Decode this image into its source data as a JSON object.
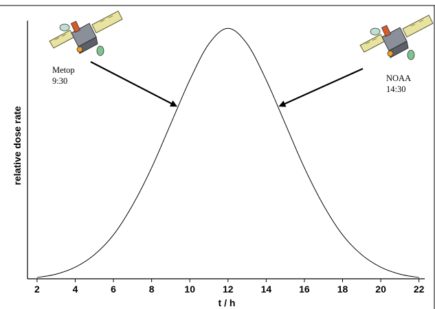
{
  "chart_data": {
    "type": "line",
    "title": "",
    "xlabel": "t / h",
    "ylabel": "relative dose rate",
    "xlim": [
      1.5,
      22.3
    ],
    "ylim": [
      0,
      1.0
    ],
    "xticks": [
      2,
      4,
      6,
      8,
      10,
      12,
      14,
      16,
      18,
      20,
      22
    ],
    "grid": false,
    "series": [
      {
        "x": [
          2,
          3,
          4,
          5,
          6,
          7,
          8,
          9,
          10,
          11,
          12,
          13,
          14,
          15,
          16,
          17,
          18,
          19,
          20,
          21,
          22
        ],
        "y": [
          0.005,
          0.018,
          0.045,
          0.093,
          0.17,
          0.285,
          0.43,
          0.6,
          0.77,
          0.91,
          0.97,
          0.91,
          0.77,
          0.6,
          0.43,
          0.285,
          0.17,
          0.093,
          0.045,
          0.018,
          0.005
        ]
      }
    ],
    "annotations": [
      {
        "text_line1": "Metop",
        "text_line2": "9:30",
        "x": 9.5,
        "y": 0.68,
        "icon": "satellite-icon"
      },
      {
        "text_line1": "NOAA",
        "text_line2": "14:30",
        "x": 14.5,
        "y": 0.68,
        "icon": "satellite-icon"
      }
    ],
    "colors": {
      "line": "#000000",
      "axis": "#000000",
      "frame": "#000000"
    }
  }
}
